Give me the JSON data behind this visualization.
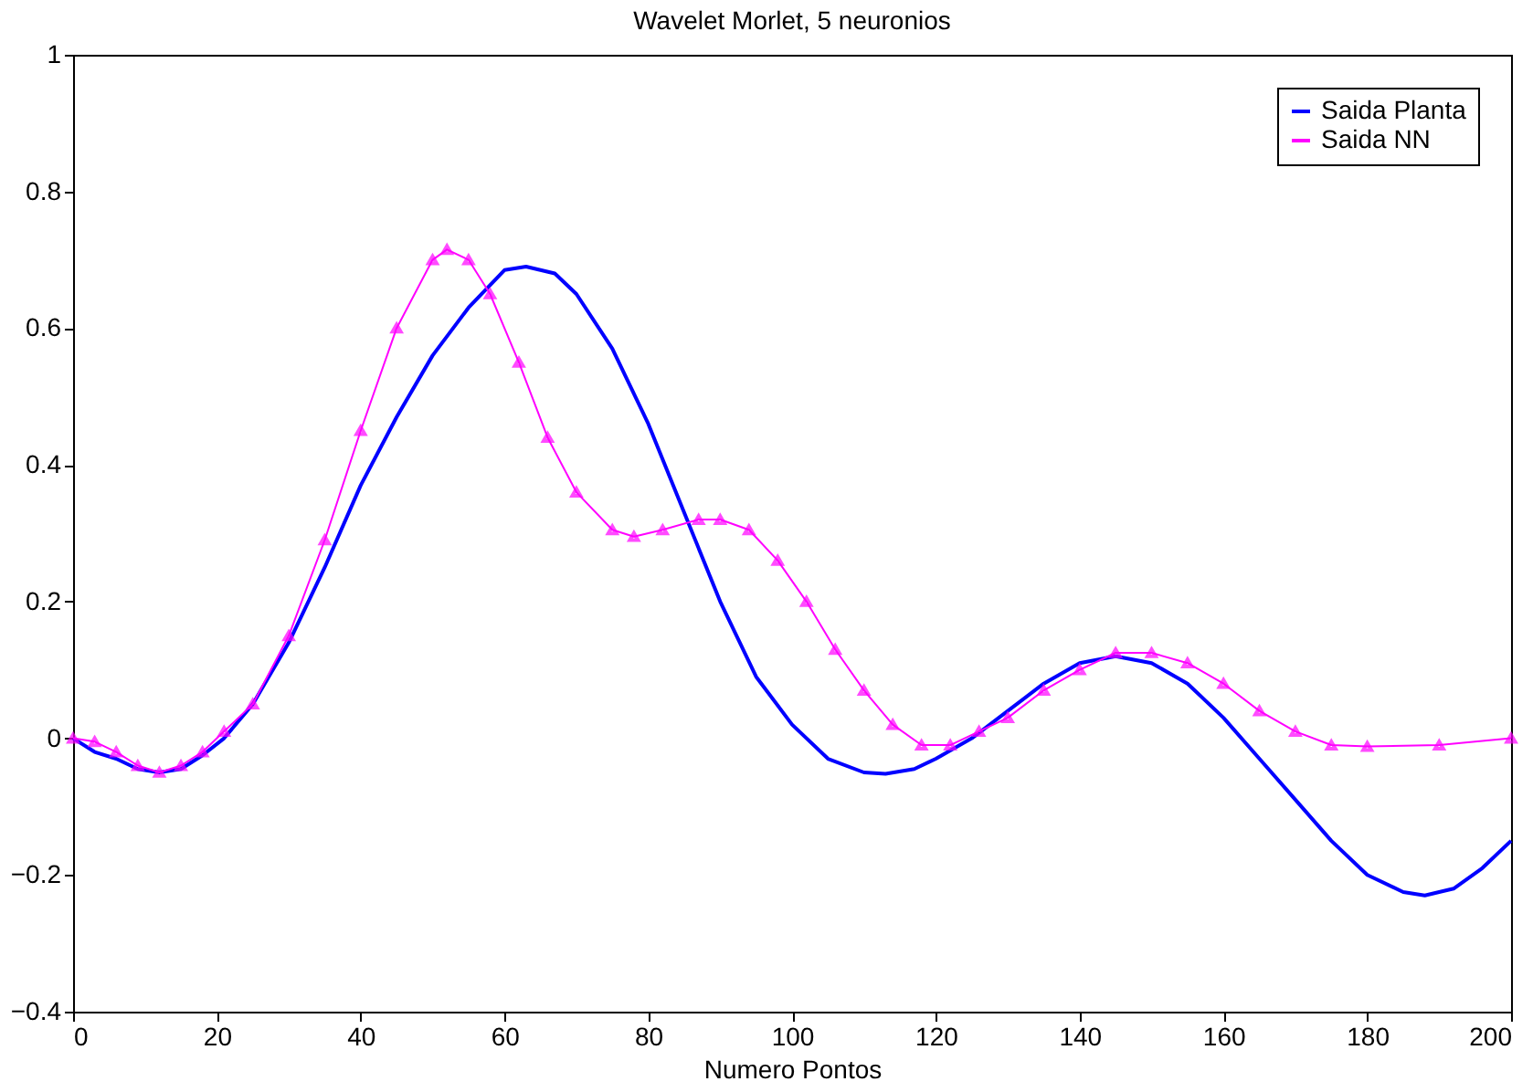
{
  "chart_data": {
    "type": "line",
    "title": "Wavelet Morlet, 5 neuronios",
    "xlabel": "Numero Pontos",
    "xlim": [
      0,
      200
    ],
    "xticks": [
      0,
      20,
      40,
      60,
      80,
      100,
      120,
      140,
      160,
      180,
      200
    ],
    "ylim": [
      -0.4,
      1
    ],
    "yticks": [
      -0.4,
      -0.2,
      0,
      0.2,
      0.4,
      0.6,
      0.8,
      1
    ],
    "grid": false,
    "legend": "top right",
    "line_style": "solid",
    "series": [
      {
        "name": "Saida Planta",
        "color": "#0000ff",
        "marker": "none",
        "x": [
          0,
          3,
          6,
          9,
          12,
          15,
          18,
          21,
          25,
          30,
          35,
          40,
          45,
          50,
          55,
          60,
          63,
          67,
          70,
          75,
          80,
          85,
          90,
          95,
          100,
          105,
          110,
          113,
          117,
          120,
          125,
          130,
          135,
          140,
          145,
          150,
          155,
          160,
          165,
          170,
          175,
          180,
          185,
          188,
          192,
          196,
          200
        ],
        "values": [
          0,
          -0.02,
          -0.03,
          -0.045,
          -0.05,
          -0.045,
          -0.025,
          0.0,
          0.05,
          0.14,
          0.25,
          0.37,
          0.47,
          0.56,
          0.63,
          0.685,
          0.69,
          0.68,
          0.65,
          0.57,
          0.46,
          0.33,
          0.2,
          0.09,
          0.02,
          -0.03,
          -0.05,
          -0.052,
          -0.045,
          -0.03,
          0.0,
          0.04,
          0.08,
          0.11,
          0.12,
          0.11,
          0.08,
          0.03,
          -0.03,
          -0.09,
          -0.15,
          -0.2,
          -0.225,
          -0.23,
          -0.22,
          -0.19,
          -0.15
        ]
      },
      {
        "name": "Saida NN",
        "color": "#ff00ff",
        "marker": "triangle",
        "x": [
          0,
          3,
          6,
          9,
          12,
          15,
          18,
          21,
          25,
          30,
          35,
          40,
          45,
          50,
          52,
          55,
          58,
          62,
          66,
          70,
          75,
          78,
          82,
          87,
          90,
          94,
          98,
          102,
          106,
          110,
          114,
          118,
          122,
          126,
          130,
          135,
          140,
          145,
          150,
          155,
          160,
          165,
          170,
          175,
          180,
          190,
          200
        ],
        "values": [
          0,
          -0.005,
          -0.02,
          -0.04,
          -0.05,
          -0.04,
          -0.02,
          0.01,
          0.05,
          0.15,
          0.29,
          0.45,
          0.6,
          0.7,
          0.715,
          0.7,
          0.65,
          0.55,
          0.44,
          0.36,
          0.305,
          0.295,
          0.305,
          0.32,
          0.32,
          0.305,
          0.26,
          0.2,
          0.13,
          0.07,
          0.02,
          -0.01,
          -0.01,
          0.01,
          0.03,
          0.07,
          0.1,
          0.125,
          0.125,
          0.11,
          0.08,
          0.04,
          0.01,
          -0.01,
          -0.012,
          -0.01,
          0.0
        ]
      }
    ]
  }
}
